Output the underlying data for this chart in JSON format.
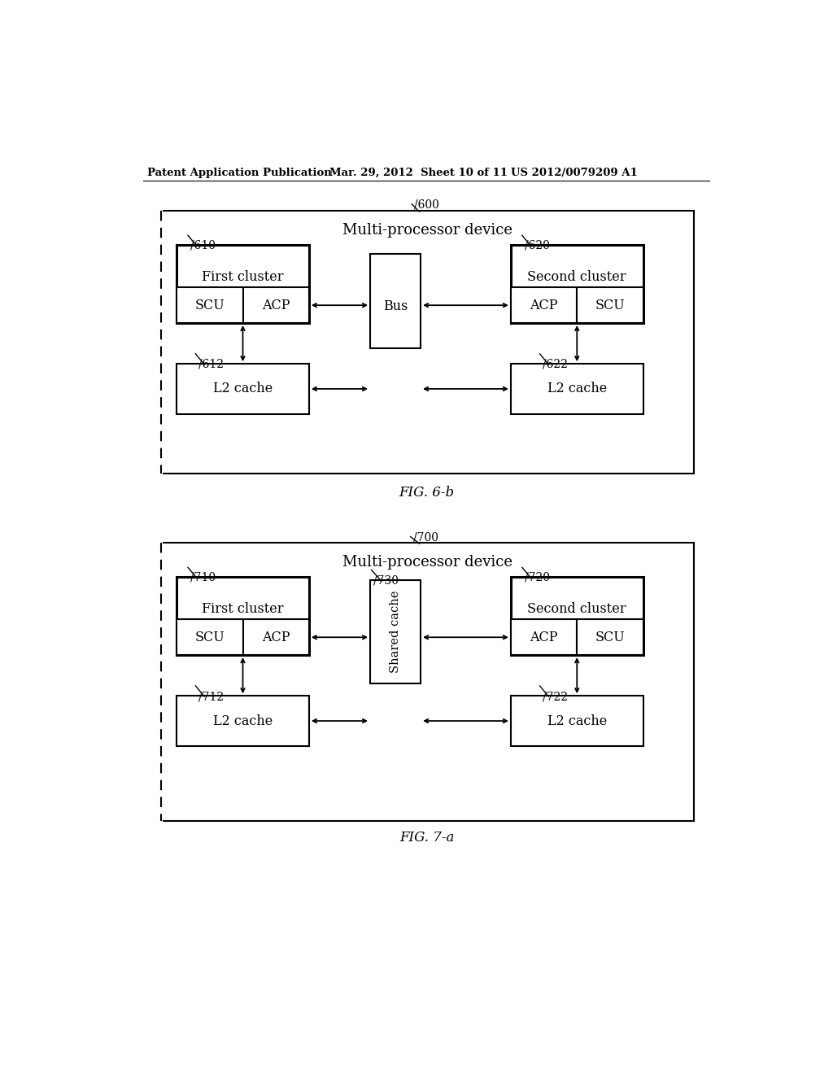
{
  "bg_color": "#ffffff",
  "header_left": "Patent Application Publication",
  "header_mid": "Mar. 29, 2012  Sheet 10 of 11",
  "header_right": "US 2012/0079209 A1",
  "fig6b_label": "FIG. 6-b",
  "fig7a_label": "FIG. 7-a",
  "fig6b": {
    "ref": "600",
    "outer_label": "Multi-processor device",
    "cluster1_ref": "610",
    "cluster1_label": "First cluster",
    "cluster2_ref": "620",
    "cluster2_label": "Second cluster",
    "bus_label": "Bus",
    "l2cache1_ref": "612",
    "l2cache1_label": "L2 cache",
    "l2cache2_ref": "622",
    "l2cache2_label": "L2 cache",
    "scu_label": "SCU",
    "acp_label": "ACP"
  },
  "fig7a": {
    "ref": "700",
    "outer_label": "Multi-processor device",
    "cluster1_ref": "710",
    "cluster1_label": "First cluster",
    "cluster2_ref": "720",
    "cluster2_label": "Second cluster",
    "shared_ref": "730",
    "shared_label": "Shared cache",
    "l2cache1_ref": "712",
    "l2cache1_label": "L2 cache",
    "l2cache2_ref": "722",
    "l2cache2_label": "L2 cache",
    "scu_label": "SCU",
    "acp_label": "ACP"
  }
}
